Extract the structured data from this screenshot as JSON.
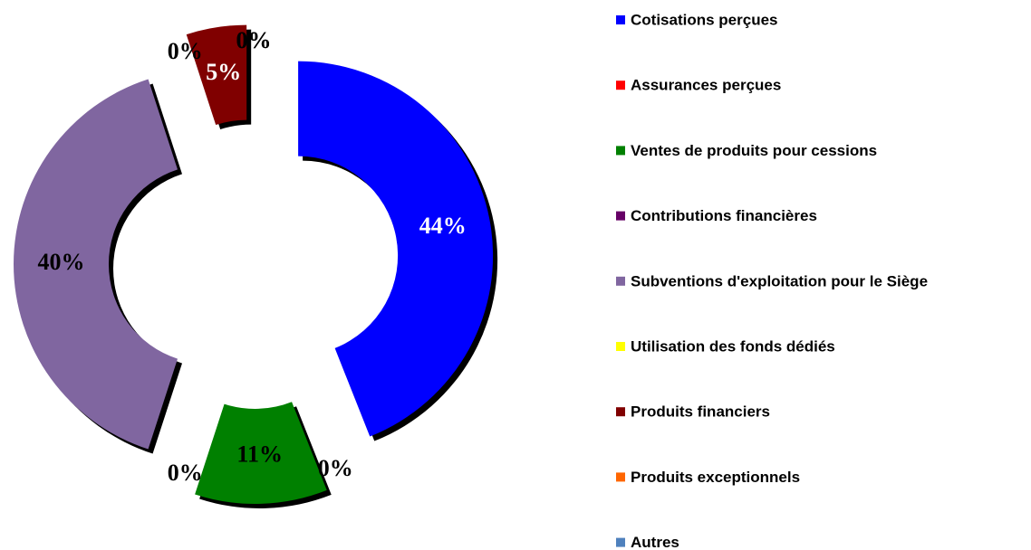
{
  "chart_data": {
    "type": "donut",
    "categories": [
      "Cotisations perçues",
      "Assurances perçues",
      "Ventes de produits pour cessions",
      "Contributions financières",
      "Subventions d'exploitation pour le Siège",
      "Utilisation des fonds dédiés",
      "Produits financiers",
      "Produits exceptionnels",
      "Autres"
    ],
    "values": [
      44,
      0,
      11,
      0,
      40,
      0,
      5,
      0,
      0
    ],
    "value_labels": [
      "44%",
      "0%",
      "11%",
      "0%",
      "40%",
      "0%",
      "5%",
      "0%",
      "0%"
    ],
    "colors": [
      "#0000ff",
      "#ff0000",
      "#008000",
      "#660066",
      "#8066a0",
      "#ffff00",
      "#800000",
      "#ff6600",
      "#4f81bd"
    ],
    "legend": "right"
  }
}
